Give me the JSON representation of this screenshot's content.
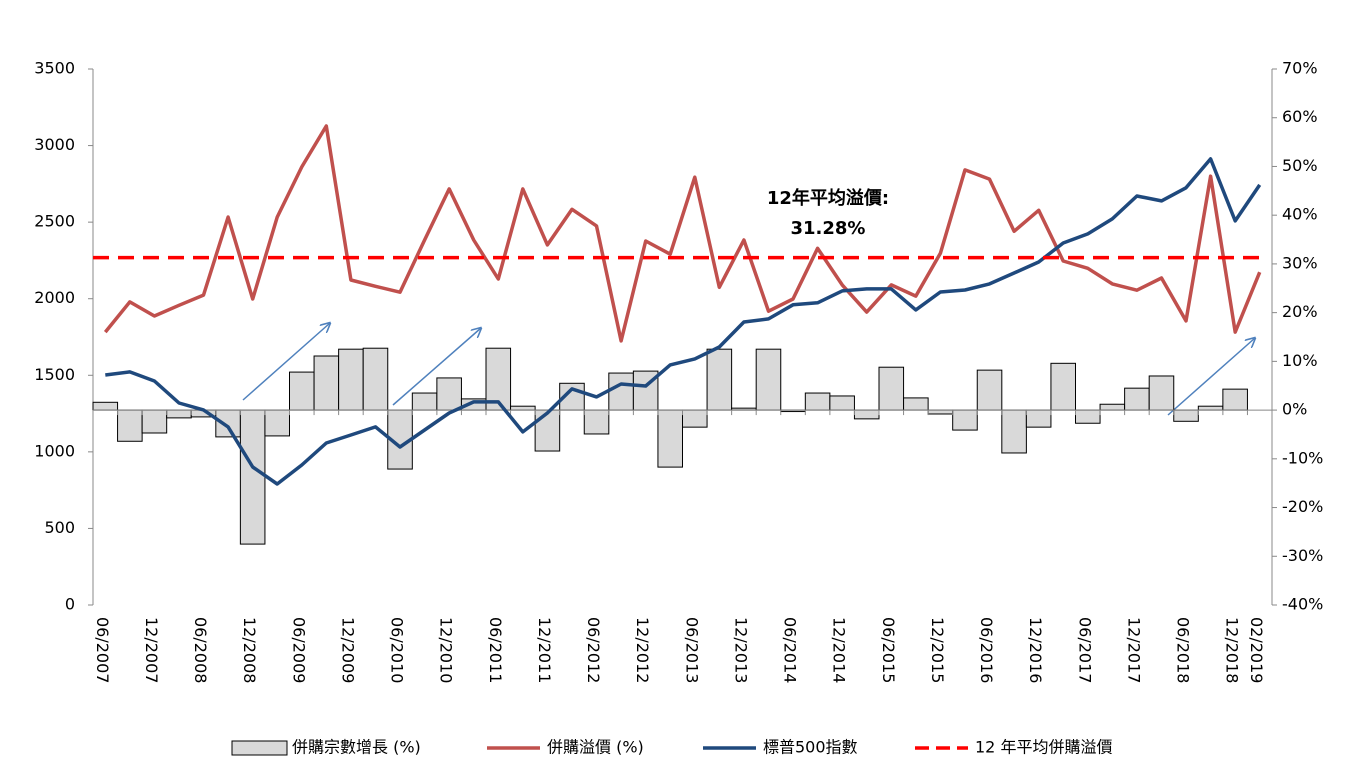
{
  "chart_data": {
    "type": "bar-line",
    "annotation": "12年平均溢價:",
    "categories": [
      "06/2007",
      null,
      "12/2007",
      null,
      "06/2008",
      null,
      "12/2008",
      null,
      "06/2009",
      null,
      "12/2009",
      null,
      "06/2010",
      null,
      "12/2010",
      null,
      "06/2011",
      null,
      "12/2011",
      null,
      "06/2012",
      null,
      "12/2012",
      null,
      "06/2013",
      null,
      "12/2013",
      null,
      "06/2014",
      null,
      "12/2014",
      null,
      "06/2015",
      null,
      "12/2015",
      null,
      "06/2016",
      null,
      "12/2016",
      null,
      "06/2017",
      null,
      "12/2017",
      null,
      "06/2018",
      null,
      "12/2018",
      "02/2019"
    ],
    "ylim": [
      0,
      3500
    ],
    "yticks": [
      0,
      500,
      1000,
      1500,
      2000,
      2500,
      3000,
      3500
    ],
    "y2lim": [
      -40,
      70
    ],
    "y2ticks": [
      {
        "value": -40,
        "label": "-40%"
      },
      {
        "value": -30,
        "label": "-30%"
      },
      {
        "value": -20,
        "label": "-20%"
      },
      {
        "value": -10,
        "label": "-10%"
      },
      {
        "value": 0,
        "label": "0%"
      },
      {
        "value": 10,
        "label": "10%"
      },
      {
        "value": 20,
        "label": "20%"
      },
      {
        "value": 30,
        "label": "30%"
      },
      {
        "value": 40,
        "label": "40%"
      },
      {
        "value": 50,
        "label": "50%"
      },
      {
        "value": 60,
        "label": "60%"
      },
      {
        "value": 70,
        "label": "70%"
      }
    ],
    "series": [
      {
        "name": "併購宗數增長 (%)",
        "type": "bar",
        "color": "#d9d9d9",
        "axis": "y2",
        "values": [
          1.6,
          -6.4,
          -4.7,
          -1.6,
          -1.4,
          -5.5,
          -27.5,
          -5.3,
          7.8,
          11.1,
          12.5,
          12.7,
          -12.1,
          3.5,
          6.6,
          2.3,
          12.7,
          0.8,
          -8.4,
          5.5,
          -4.9,
          7.6,
          8.0,
          -11.7,
          -3.5,
          12.5,
          0.4,
          12.5,
          -0.3,
          3.5,
          2.9,
          -1.8,
          8.8,
          2.5,
          -0.8,
          -4.1,
          8.2,
          -8.8,
          -3.5,
          9.6,
          -2.7,
          1.2,
          4.5,
          7.0,
          -2.3,
          0.8,
          4.3,
          null
        ]
      },
      {
        "name": "併購溢價 (%)",
        "type": "line",
        "color": "#c0504d",
        "axis": "y2",
        "values": [
          16.0,
          22.2,
          19.3,
          21.5,
          23.6,
          39.6,
          22.8,
          39.6,
          49.9,
          58.3,
          26.7,
          25.4,
          24.2,
          34.9,
          45.4,
          34.9,
          26.9,
          45.4,
          33.9,
          41.2,
          37.8,
          14.2,
          34.7,
          32.0,
          47.8,
          25.2,
          34.9,
          20.3,
          22.8,
          33.2,
          25.7,
          20.1,
          25.7,
          23.4,
          32.2,
          49.3,
          47.4,
          36.7,
          41.0,
          30.6,
          29.1,
          25.9,
          24.6,
          27.1,
          18.3,
          48.0,
          16.0,
          28.3
        ]
      },
      {
        "name": "標普500指數",
        "type": "line",
        "color": "#1f497d",
        "values": [
          1502,
          1522,
          1463,
          1319,
          1274,
          1163,
          901,
          790,
          914,
          1058,
          1110,
          1163,
          1032,
          1143,
          1254,
          1326,
          1326,
          1130,
          1254,
          1411,
          1359,
          1443,
          1430,
          1568,
          1607,
          1685,
          1848,
          1868,
          1960,
          1973,
          2051,
          2064,
          2064,
          1927,
          2044,
          2057,
          2097,
          2168,
          2240,
          2364,
          2423,
          2521,
          2671,
          2639,
          2724,
          2913,
          2508,
          2743
        ]
      },
      {
        "name": "12 年平均併購溢價",
        "type": "hline",
        "color": "#ff0000",
        "axis": "y2",
        "value": 31.28,
        "value_label": "31.28%"
      }
    ]
  }
}
